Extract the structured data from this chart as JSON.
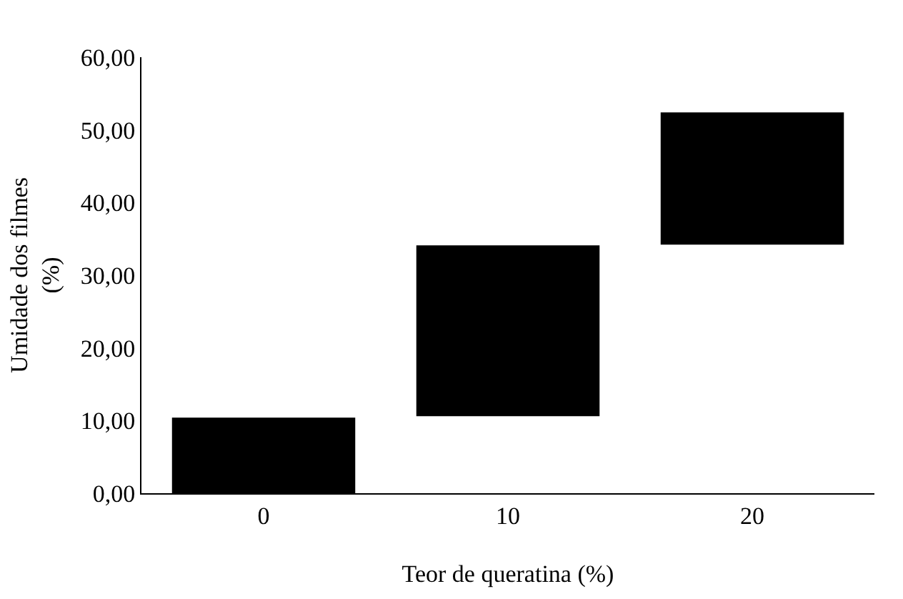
{
  "chart_data": {
    "type": "bar",
    "xlabel": "Teor de queratina (%)",
    "ylabel": "Umidade dos filmes\n(%)",
    "categories": [
      "0",
      "10",
      "20"
    ],
    "base": [
      0,
      10.6,
      34.2
    ],
    "values": [
      10.4,
      23.5,
      18.2
    ],
    "color": "#000000",
    "ylim": [
      0,
      60
    ],
    "yticks": [
      {
        "value": 0,
        "label": "0,00"
      },
      {
        "value": 10,
        "label": "10,00"
      },
      {
        "value": 20,
        "label": "20,00"
      },
      {
        "value": 30,
        "label": "30,00"
      },
      {
        "value": 40,
        "label": "40,00"
      },
      {
        "value": 50,
        "label": "50,00"
      },
      {
        "value": 60,
        "label": "60,00"
      }
    ],
    "legend": false
  }
}
